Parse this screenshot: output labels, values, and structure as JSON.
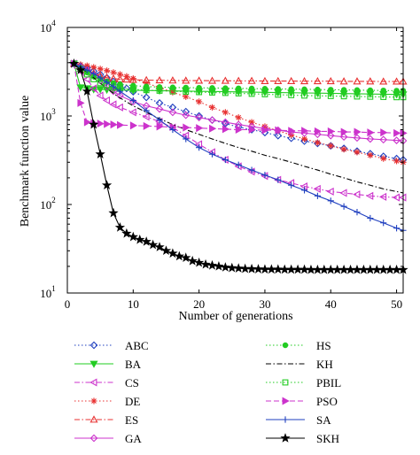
{
  "chart_data": {
    "type": "line",
    "title": "",
    "xlabel": "Number of generations",
    "ylabel": "Benchmark function value",
    "xlim": [
      0,
      51
    ],
    "ylim": [
      10,
      10000
    ],
    "yscale": "log",
    "xticks": [
      "0",
      "10",
      "20",
      "30",
      "40",
      "50"
    ],
    "yticks": [
      {
        "base": "10",
        "exp": "1"
      },
      {
        "base": "10",
        "exp": "2"
      },
      {
        "base": "10",
        "exp": "3"
      },
      {
        "base": "10",
        "exp": "4"
      }
    ],
    "grid": false,
    "legend_position": "below plot, two columns",
    "series": [
      {
        "name": "ABC",
        "color": "#1f3fbf",
        "marker": "diamond",
        "line": "dotted",
        "x": [
          1,
          2,
          3,
          4,
          5,
          6,
          7,
          8,
          9,
          10,
          12,
          14,
          16,
          18,
          20,
          22,
          24,
          26,
          28,
          30,
          32,
          34,
          36,
          38,
          40,
          42,
          44,
          46,
          48,
          50,
          51
        ],
        "y": [
          3900,
          3700,
          3500,
          3200,
          2950,
          2700,
          2450,
          2250,
          2050,
          1880,
          1620,
          1400,
          1250,
          1120,
          1000,
          900,
          820,
          750,
          700,
          650,
          600,
          560,
          520,
          490,
          460,
          430,
          400,
          375,
          350,
          330,
          320
        ]
      },
      {
        "name": "BA",
        "color": "#22cc22",
        "marker": "triangle-down",
        "line": "solid",
        "x": [
          1,
          2,
          3,
          4,
          5,
          6,
          7,
          8,
          10,
          12,
          14,
          16,
          18,
          20,
          22,
          24,
          26,
          28,
          30,
          32,
          34,
          36,
          38,
          40,
          42,
          44,
          46,
          48,
          50,
          51
        ],
        "y": [
          3900,
          2100,
          2050,
          2000,
          2000,
          1980,
          1970,
          1960,
          1950,
          1940,
          1930,
          1920,
          1910,
          1900,
          1890,
          1880,
          1870,
          1860,
          1850,
          1840,
          1830,
          1820,
          1810,
          1800,
          1790,
          1780,
          1770,
          1760,
          1750,
          1750
        ]
      },
      {
        "name": "CS",
        "color": "#cc33cc",
        "marker": "triangle-left",
        "line": "dashdot",
        "x": [
          1,
          2,
          3,
          4,
          5,
          6,
          7,
          8,
          10,
          12,
          14,
          16,
          18,
          20,
          22,
          24,
          26,
          28,
          30,
          32,
          34,
          36,
          38,
          40,
          42,
          44,
          46,
          48,
          50,
          51
        ],
        "y": [
          3900,
          3200,
          2600,
          2050,
          1700,
          1500,
          1350,
          1250,
          1100,
          980,
          860,
          740,
          600,
          480,
          390,
          320,
          270,
          235,
          210,
          190,
          175,
          160,
          150,
          140,
          135,
          130,
          125,
          122,
          120,
          120
        ]
      },
      {
        "name": "DE",
        "color": "#e83030",
        "marker": "asterisk",
        "line": "dotted",
        "x": [
          1,
          2,
          3,
          4,
          5,
          6,
          7,
          8,
          9,
          10,
          12,
          14,
          16,
          18,
          20,
          22,
          24,
          26,
          28,
          30,
          32,
          34,
          36,
          38,
          40,
          42,
          44,
          46,
          48,
          50,
          51
        ],
        "y": [
          3900,
          3800,
          3700,
          3550,
          3400,
          3250,
          3100,
          2950,
          2800,
          2650,
          2350,
          2100,
          1850,
          1650,
          1450,
          1250,
          1100,
          960,
          850,
          760,
          680,
          610,
          550,
          500,
          460,
          420,
          390,
          360,
          330,
          310,
          300
        ]
      },
      {
        "name": "ES",
        "color": "#e83030",
        "marker": "triangle-up",
        "line": "dashdot",
        "x": [
          1,
          2,
          3,
          4,
          5,
          6,
          7,
          8,
          9,
          10,
          12,
          14,
          16,
          18,
          20,
          22,
          24,
          26,
          28,
          30,
          32,
          34,
          36,
          38,
          40,
          42,
          44,
          46,
          48,
          50,
          51
        ],
        "y": [
          3900,
          3600,
          3300,
          3050,
          2850,
          2700,
          2650,
          2600,
          2580,
          2560,
          2540,
          2530,
          2520,
          2510,
          2510,
          2500,
          2500,
          2490,
          2490,
          2480,
          2480,
          2480,
          2470,
          2470,
          2470,
          2460,
          2460,
          2460,
          2450,
          2450,
          2450
        ]
      },
      {
        "name": "GA",
        "color": "#cc33cc",
        "marker": "diamond",
        "line": "solid",
        "x": [
          1,
          2,
          3,
          4,
          5,
          6,
          7,
          8,
          10,
          12,
          14,
          16,
          18,
          20,
          22,
          24,
          26,
          28,
          30,
          32,
          34,
          36,
          38,
          40,
          42,
          44,
          46,
          48,
          50,
          51
        ],
        "y": [
          3900,
          3600,
          3300,
          2900,
          2500,
          2150,
          1900,
          1700,
          1450,
          1300,
          1200,
          1100,
          1020,
          960,
          900,
          850,
          800,
          760,
          720,
          690,
          660,
          640,
          620,
          600,
          580,
          565,
          550,
          540,
          530,
          525
        ]
      },
      {
        "name": "HS",
        "color": "#22cc22",
        "marker": "circle",
        "line": "dotted",
        "x": [
          1,
          2,
          3,
          4,
          5,
          6,
          7,
          8,
          10,
          12,
          14,
          16,
          18,
          20,
          22,
          24,
          26,
          28,
          30,
          32,
          34,
          36,
          38,
          40,
          42,
          44,
          46,
          48,
          50,
          51
        ],
        "y": [
          3900,
          3500,
          3100,
          2800,
          2600,
          2450,
          2350,
          2280,
          2200,
          2150,
          2120,
          2100,
          2090,
          2080,
          2070,
          2060,
          2050,
          2040,
          2030,
          2020,
          2010,
          2000,
          1990,
          1980,
          1970,
          1960,
          1950,
          1940,
          1930,
          1930
        ]
      },
      {
        "name": "KH",
        "color": "#000000",
        "marker": "none",
        "line": "dashdot",
        "x": [
          1,
          2,
          3,
          4,
          5,
          6,
          7,
          8,
          10,
          12,
          14,
          16,
          18,
          20,
          22,
          24,
          26,
          28,
          30,
          32,
          34,
          36,
          38,
          40,
          42,
          44,
          46,
          48,
          50,
          51
        ],
        "y": [
          3900,
          3500,
          3100,
          2700,
          2350,
          2050,
          1800,
          1600,
          1300,
          1100,
          930,
          800,
          700,
          620,
          550,
          490,
          440,
          400,
          360,
          330,
          300,
          270,
          245,
          220,
          200,
          180,
          165,
          150,
          140,
          135
        ]
      },
      {
        "name": "PBIL",
        "color": "#22cc22",
        "marker": "square",
        "line": "dotted",
        "x": [
          1,
          2,
          3,
          4,
          5,
          6,
          7,
          8,
          10,
          12,
          14,
          16,
          18,
          20,
          22,
          24,
          26,
          28,
          30,
          32,
          34,
          36,
          38,
          40,
          42,
          44,
          46,
          48,
          50,
          51
        ],
        "y": [
          3900,
          3400,
          2950,
          2600,
          2350,
          2200,
          2100,
          2050,
          2000,
          1960,
          1930,
          1900,
          1880,
          1860,
          1840,
          1820,
          1800,
          1780,
          1760,
          1740,
          1720,
          1700,
          1690,
          1680,
          1670,
          1660,
          1650,
          1640,
          1630,
          1630
        ]
      },
      {
        "name": "PSO",
        "color": "#cc33cc",
        "marker": "triangle-right",
        "line": "dashed",
        "x": [
          1,
          2,
          3,
          4,
          5,
          6,
          7,
          8,
          10,
          12,
          14,
          16,
          18,
          20,
          22,
          24,
          26,
          28,
          30,
          32,
          34,
          36,
          38,
          40,
          42,
          44,
          46,
          48,
          50,
          51
        ],
        "y": [
          3900,
          1400,
          850,
          830,
          820,
          810,
          800,
          790,
          780,
          770,
          760,
          750,
          740,
          730,
          720,
          710,
          700,
          700,
          690,
          690,
          680,
          680,
          670,
          670,
          660,
          660,
          650,
          650,
          640,
          640
        ]
      },
      {
        "name": "SA",
        "color": "#1f3fbf",
        "marker": "plus",
        "line": "solid",
        "x": [
          1,
          2,
          3,
          4,
          5,
          6,
          7,
          8,
          10,
          12,
          14,
          16,
          18,
          20,
          22,
          24,
          26,
          28,
          30,
          32,
          34,
          36,
          38,
          40,
          42,
          44,
          46,
          48,
          50,
          51
        ],
        "y": [
          3900,
          3600,
          3300,
          3000,
          2700,
          2400,
          2150,
          1900,
          1500,
          1150,
          900,
          700,
          550,
          440,
          370,
          320,
          280,
          245,
          215,
          190,
          165,
          145,
          125,
          110,
          95,
          82,
          70,
          62,
          54,
          51
        ]
      },
      {
        "name": "SKH",
        "color": "#000000",
        "marker": "star",
        "line": "solid",
        "x": [
          1,
          2,
          3,
          4,
          5,
          6,
          7,
          8,
          9,
          10,
          11,
          12,
          13,
          14,
          15,
          16,
          17,
          18,
          19,
          20,
          21,
          22,
          23,
          24,
          25,
          26,
          27,
          28,
          29,
          30,
          31,
          32,
          33,
          34,
          35,
          36,
          37,
          38,
          39,
          40,
          41,
          42,
          43,
          44,
          45,
          46,
          47,
          48,
          49,
          50,
          51
        ],
        "y": [
          3900,
          3300,
          1900,
          800,
          370,
          165,
          80,
          55,
          47,
          43,
          40,
          38,
          35,
          33,
          30,
          28,
          26,
          25,
          23,
          22,
          21,
          20.5,
          20,
          19.5,
          19.2,
          19,
          18.8,
          18.7,
          18.6,
          18.5,
          18.5,
          18.5,
          18.4,
          18.4,
          18.4,
          18.4,
          18.3,
          18.3,
          18.3,
          18.3,
          18.3,
          18.3,
          18.3,
          18.3,
          18.3,
          18.3,
          18.3,
          18.3,
          18.3,
          18.3,
          18.3
        ]
      }
    ]
  }
}
